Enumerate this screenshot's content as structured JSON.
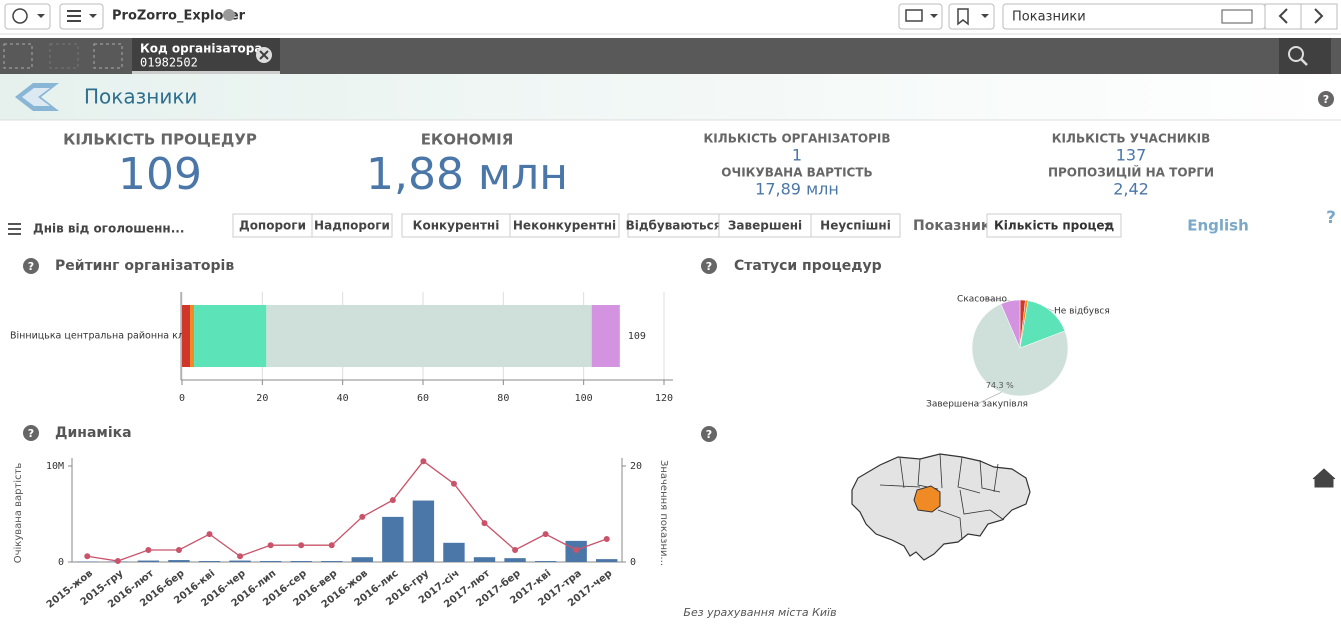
{
  "toolbar": {
    "app": "ProZorro_Explorer",
    "sheet": "Показники"
  },
  "selection": {
    "field": "Код організатора",
    "value": "01982502"
  },
  "header": {
    "title": "Показники"
  },
  "help_icon": "?",
  "kpis": [
    {
      "label": "КІЛЬКІСТЬ ПРОЦЕДУР",
      "value": "109"
    },
    {
      "label": "ЕКОНОМІЯ",
      "value": "1,88 млн"
    },
    {
      "label": "КІЛЬКІСТЬ ОРГАНІЗАТОРІВ",
      "value": "1"
    },
    {
      "label": "ОЧІКУВАНА ВАРТІСТЬ",
      "value": "17,89 млн"
    },
    {
      "label": "КІЛЬКІСТЬ УЧАСНИКІВ",
      "value": "137"
    },
    {
      "label": "ПРОПОЗИЦІЙ НА ТОРГИ",
      "value": "2,42"
    }
  ],
  "filters": {
    "listbox": "Днів від оголошенн...",
    "groups": [
      [
        "Допороги",
        "Надпороги"
      ],
      [
        "Конкурентні",
        "Неконкурентні"
      ],
      [
        "Відбуваються",
        "Завершені",
        "Неуспішні"
      ]
    ],
    "measure_label": "Показник",
    "measure_value": "Кількість процед",
    "language": "English"
  },
  "map_note": "Без урахування міста Київ",
  "chart_data": [
    {
      "type": "bar",
      "orientation": "horizontal",
      "stacked": true,
      "title": "Рейтинг організаторів",
      "categories": [
        "Вінницька центральна районна клі..."
      ],
      "series": [
        {
          "color": "#d0372b",
          "values": [
            2
          ]
        },
        {
          "color": "#f08a24",
          "values": [
            1
          ]
        },
        {
          "color": "#5de3b8",
          "values": [
            18
          ]
        },
        {
          "color": "#cfe0da",
          "values": [
            81
          ]
        },
        {
          "color": "#d493e0",
          "values": [
            7
          ]
        }
      ],
      "totals": [
        109
      ],
      "xlim": [
        0,
        120
      ],
      "xticks": [
        0,
        20,
        40,
        60,
        80,
        100,
        120
      ],
      "grid": true
    },
    {
      "type": "pie",
      "title": "Статуси процедур",
      "categories": [
        null,
        "Не відбувся",
        null,
        "Завершена закупівля",
        "Скасовано"
      ],
      "values": [
        1.8,
        0.9,
        16.5,
        74.3,
        6.5
      ],
      "value_labels": [
        null,
        null,
        null,
        "74.3 %",
        null
      ],
      "colors": [
        "#d0372b",
        "#f08a24",
        "#5de3b8",
        "#cfe0da",
        "#d493e0"
      ]
    },
    {
      "type": "combo",
      "title": "Динаміка",
      "categories": [
        "2015-жов",
        "2015-гру",
        "2016-лют",
        "2016-бер",
        "2016-кві",
        "2016-чер",
        "2016-лип",
        "2016-сер",
        "2016-вер",
        "2016-жов",
        "2016-лис",
        "2016-гру",
        "2017-січ",
        "2017-лют",
        "2017-бер",
        "2017-кві",
        "2017-тра",
        "2017-чер"
      ],
      "series": [
        {
          "color": "#4a77a8",
          "values": [
            50000,
            50000,
            150000,
            200000,
            100000,
            150000,
            100000,
            100000,
            100000,
            500000,
            4700000,
            6400000,
            2000000,
            500000,
            400000,
            100000,
            2200000,
            300000
          ]
        },
        {
          "color": "#c9546a",
          "axis": "y2",
          "values": [
            1.2,
            0.2,
            2.5,
            2.5,
            5.8,
            1.2,
            3.5,
            3.5,
            3.5,
            9.4,
            12.9,
            21,
            16.3,
            8.1,
            2.5,
            5.8,
            2.5,
            4.8
          ]
        }
      ],
      "ylabel": "Очікувана вартість",
      "y2label": "Значення показни...",
      "ylim": [
        0,
        10000000
      ],
      "yticks": [
        0,
        {
          "value": 10000000,
          "label": "10M"
        }
      ],
      "y2lim": [
        0,
        20
      ],
      "y2ticks": [
        0,
        20
      ]
    }
  ]
}
